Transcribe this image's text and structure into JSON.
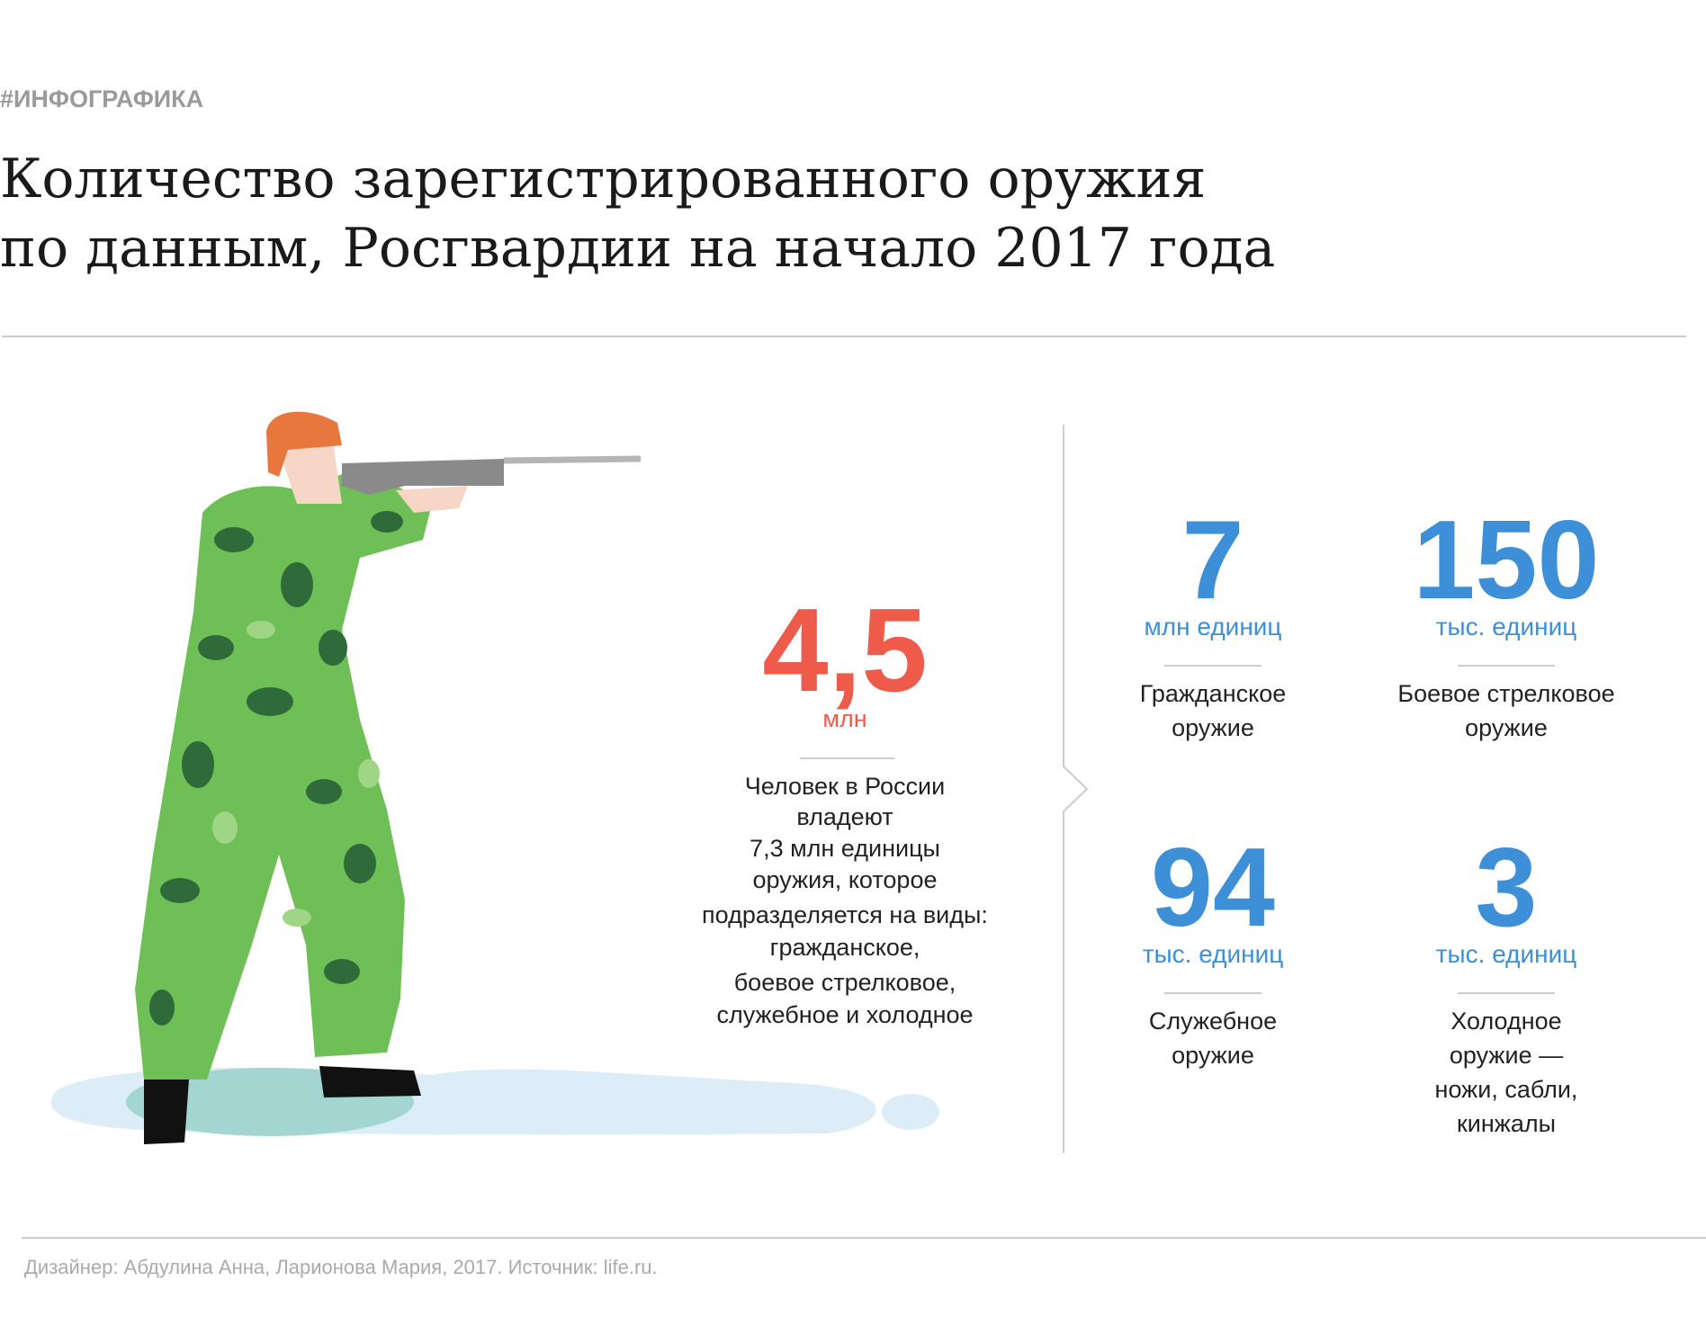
{
  "header": {
    "tag": "#ИНФОГРАФИКА",
    "title": [
      "Количество зарегистрированного оружия",
      "по данным, Росгвардии на начало 2017 года"
    ]
  },
  "main_stat": {
    "number": "4,5",
    "unit": "млн",
    "description": [
      "Человек в России",
      "владеют",
      "7,3 млн единицы",
      "оружия, которое",
      "подразделяется на виды:",
      "гражданское,",
      "боевое стрелковое,",
      "служебное и холодное"
    ]
  },
  "stats": [
    {
      "number": "7",
      "unit": "млн единиц",
      "label": [
        "Гражданское",
        "оружие"
      ]
    },
    {
      "number": "150",
      "unit": "тыс. единиц",
      "label": [
        "Боевое стрелковое",
        "оружие"
      ]
    },
    {
      "number": "94",
      "unit": "тыс. единиц",
      "label": [
        "Служебное",
        "оружие"
      ]
    },
    {
      "number": "3",
      "unit": "тыс. единиц",
      "label": [
        "Холодное",
        "оружие —",
        "ножи, сабли,",
        "кинжалы"
      ]
    }
  ],
  "footer": "Дизайнер: Абдулина Анна, Ларионова Мария, 2017. Источник: life.ru."
}
